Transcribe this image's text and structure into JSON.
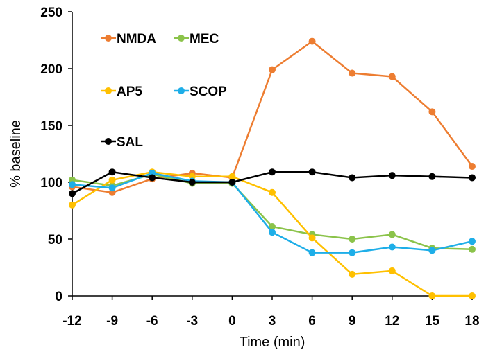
{
  "chart_data": {
    "type": "line",
    "title": "",
    "xlabel": "Time (min)",
    "ylabel": "% baseline",
    "x": [
      -12,
      -9,
      -6,
      -3,
      0,
      3,
      6,
      9,
      12,
      15,
      18
    ],
    "xticks": [
      "-12",
      "-9",
      "-6",
      "-3",
      "0",
      "3",
      "6",
      "9",
      "12",
      "15",
      "18"
    ],
    "yticks": [
      "0",
      "50",
      "100",
      "150",
      "200",
      "250"
    ],
    "ylim": [
      0,
      250
    ],
    "grid": false,
    "legend_position": "top-left",
    "series": [
      {
        "name": "NMDA",
        "color": "#ED7D31",
        "values": [
          96,
          91,
          103,
          108,
          104,
          199,
          224,
          196,
          193,
          162,
          114
        ]
      },
      {
        "name": "MEC",
        "color": "#8BC34A",
        "values": [
          102,
          97,
          107,
          99,
          99,
          61,
          54,
          50,
          54,
          42,
          41
        ]
      },
      {
        "name": "AP5",
        "color": "#FFC000",
        "values": [
          80,
          102,
          109,
          105,
          105,
          91,
          51,
          19,
          22,
          0,
          0
        ]
      },
      {
        "name": "SCOP",
        "color": "#1EAEE8",
        "values": [
          98,
          95,
          108,
          101,
          100,
          56,
          38,
          38,
          43,
          40,
          48
        ]
      },
      {
        "name": "SAL",
        "color": "#000000",
        "values": [
          90,
          109,
          104,
          100,
          100,
          109,
          109,
          104,
          106,
          105,
          104
        ]
      }
    ]
  }
}
